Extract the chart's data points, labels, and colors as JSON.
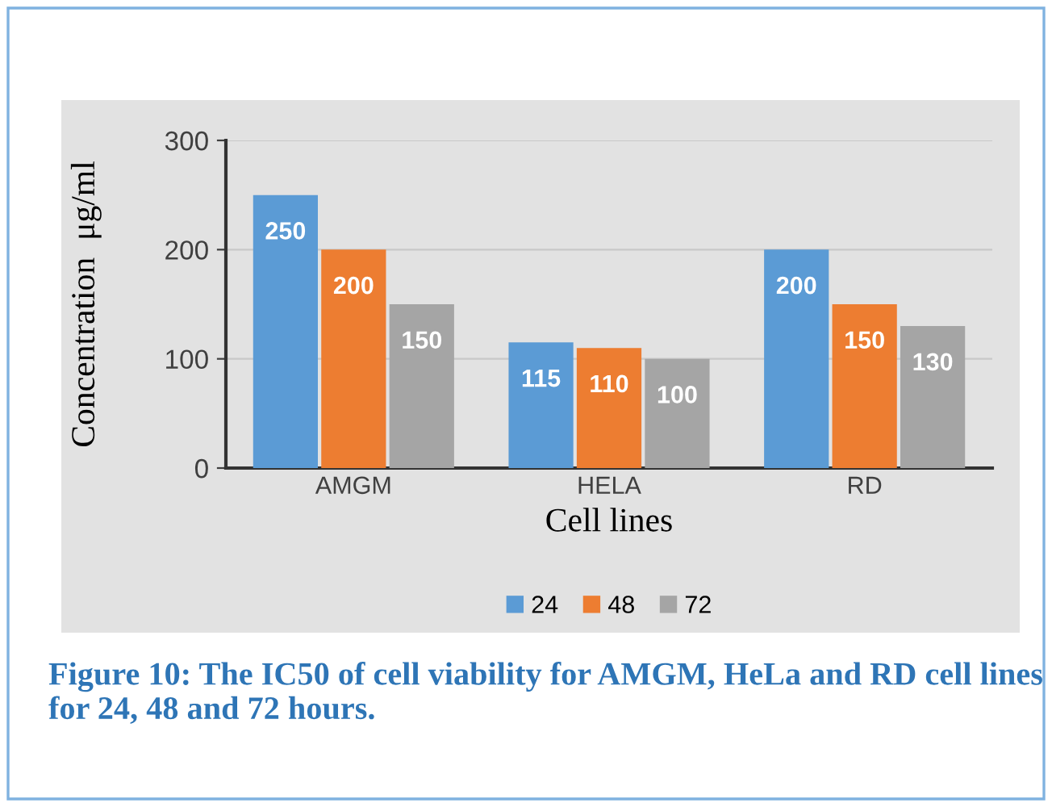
{
  "chart_data": {
    "type": "bar",
    "categories": [
      "AMGM",
      "HELA",
      "RD"
    ],
    "series": [
      {
        "name": "24",
        "color": "#5b9bd5",
        "values": [
          250,
          115,
          200
        ]
      },
      {
        "name": "48",
        "color": "#ed7d31",
        "values": [
          200,
          110,
          150
        ]
      },
      {
        "name": "72",
        "color": "#a5a5a5",
        "values": [
          150,
          100,
          130
        ]
      }
    ],
    "ylabel": "Concentration  μg/ml",
    "xlabel": "Cell lines",
    "ylim": [
      0,
      300
    ],
    "yticks": [
      0,
      100,
      200,
      300
    ],
    "grid": "y",
    "legend": "bottom",
    "data_labels": true,
    "annotations": [
      "Figure 10: The IC50 of cell viability for AMGM, HeLa and RD cell lines for 24, 48 and 72 hours."
    ]
  }
}
